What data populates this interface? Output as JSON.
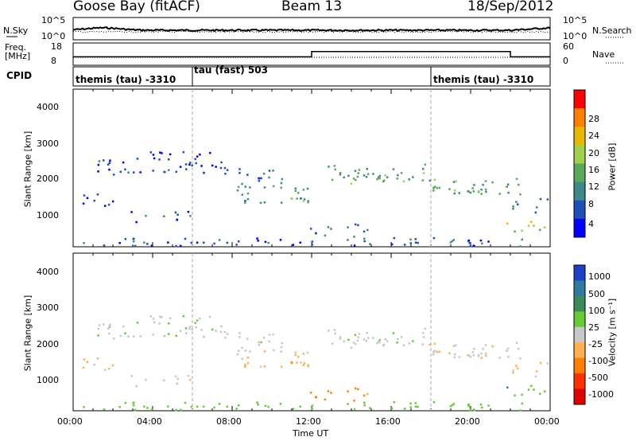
{
  "header": {
    "station": "Goose Bay (fitACF)",
    "beam": "Beam 13",
    "date": "18/Sep/2012"
  },
  "noise_panel": {
    "left_label": "N.Sky",
    "right_label": "N.Search",
    "left_ticks": [
      "10^5",
      "10^0"
    ],
    "right_ticks": [
      "10^5",
      "10^0"
    ]
  },
  "freq_panel": {
    "left_label_1": "Freq.",
    "left_label_2": "[MHz]",
    "right_label": "Nave",
    "left_ticks": [
      "18",
      "8"
    ],
    "right_ticks": [
      "60",
      "0"
    ]
  },
  "cpid_panel": {
    "label": "CPID",
    "segments": [
      {
        "text": "themis (tau) -3310",
        "start_hour": 0
      },
      {
        "text": "tau (fast) 503",
        "start_hour": 6
      },
      {
        "text": "themis (tau) -3310",
        "start_hour": 18
      }
    ]
  },
  "time_axis": {
    "label": "Time UT",
    "ticks": [
      "00:00",
      "04:00",
      "08:00",
      "12:00",
      "16:00",
      "20:00",
      "00:00"
    ],
    "range_hours": [
      0,
      24
    ]
  },
  "power_panel": {
    "ylabel": "Slant Range [km]",
    "yticks": [
      "1000",
      "2000",
      "3000",
      "4000"
    ],
    "colorbar_label": "Power [dB]",
    "colorbar_ticks": [
      "4",
      "8",
      "12",
      "16",
      "20",
      "24",
      "28"
    ],
    "colors": [
      "#0000ff",
      "#1f4fb8",
      "#3d8a8a",
      "#5aa85a",
      "#9fd24a",
      "#e6b800",
      "#ff8000",
      "#ff0000"
    ]
  },
  "velocity_panel": {
    "ylabel": "Slant Range [km]",
    "yticks": [
      "1000",
      "2000",
      "3000",
      "4000"
    ],
    "colorbar_label": "Velocity [m s⁻¹]",
    "colorbar_ticks": [
      "1000",
      "500",
      "100",
      "25",
      "-25",
      "-100",
      "-500",
      "-1000"
    ],
    "colors": [
      "#1f3fc8",
      "#2e7aa0",
      "#3a8a5a",
      "#66cc33",
      "#c8c8c8",
      "#ffb050",
      "#ff8000",
      "#ff3000",
      "#e00000"
    ]
  },
  "chart_data": {
    "type": "heatmap",
    "title": "Goose Bay (fitACF)",
    "subtitle": "Beam 13",
    "xlabel": "Time UT",
    "ylabel": "Slant Range [km]",
    "xlim_hours": [
      0,
      24
    ],
    "ylim_km": [
      180,
      4500
    ],
    "xticks": [
      "00:00",
      "04:00",
      "08:00",
      "12:00",
      "16:00",
      "20:00",
      "00:00"
    ],
    "yticks": [
      1000,
      2000,
      3000,
      4000
    ],
    "freq_step": {
      "hours": [
        12,
        22
      ],
      "freq_mhz": [
        11,
        14
      ]
    },
    "scatter_regions": [
      {
        "t0": 0.2,
        "t1": 2.5,
        "r0": 1300,
        "r1": 1650,
        "power_db": 6,
        "velocity": -30
      },
      {
        "t0": 1.0,
        "t1": 9.0,
        "r0": 2150,
        "r1": 2600,
        "power_db": 7,
        "velocity": 10
      },
      {
        "t0": 3.5,
        "t1": 7.0,
        "r0": 2400,
        "r1": 2800,
        "power_db": 6,
        "velocity": 5
      },
      {
        "t0": 2.8,
        "t1": 6.0,
        "r0": 850,
        "r1": 1150,
        "power_db": 8,
        "velocity": 0
      },
      {
        "t0": 8.2,
        "t1": 12.0,
        "r0": 1350,
        "r1": 1900,
        "power_db": 13,
        "velocity": -15
      },
      {
        "t0": 8.2,
        "t1": 10.5,
        "r0": 1800,
        "r1": 2300,
        "power_db": 9,
        "velocity": 5
      },
      {
        "t0": 10.0,
        "t1": 12.0,
        "r0": 1350,
        "r1": 1550,
        "power_db": 17,
        "velocity": -80
      },
      {
        "t0": 11.8,
        "t1": 15.0,
        "r0": 450,
        "r1": 800,
        "power_db": 10,
        "velocity": -120
      },
      {
        "t0": 12.8,
        "t1": 18.0,
        "r0": 2000,
        "r1": 2450,
        "power_db": 14,
        "velocity": 10
      },
      {
        "t0": 13.5,
        "t1": 18.5,
        "r0": 1900,
        "r1": 2200,
        "power_db": 16,
        "velocity": 0
      },
      {
        "t0": 17.5,
        "t1": 22.5,
        "r0": 1550,
        "r1": 1950,
        "power_db": 14,
        "velocity": -10
      },
      {
        "t0": 19.0,
        "t1": 22.5,
        "r0": 1700,
        "r1": 2050,
        "power_db": 15,
        "velocity": 10
      },
      {
        "t0": 21.5,
        "t1": 24.0,
        "r0": 600,
        "r1": 900,
        "power_db": 20,
        "velocity": 80
      },
      {
        "t0": 22.0,
        "t1": 24.0,
        "r0": 1100,
        "r1": 1500,
        "power_db": 10,
        "velocity": -30
      },
      {
        "t0": 0.0,
        "t1": 24.0,
        "r0": 190,
        "r1": 420,
        "power_db": 8,
        "velocity": 60
      }
    ]
  }
}
